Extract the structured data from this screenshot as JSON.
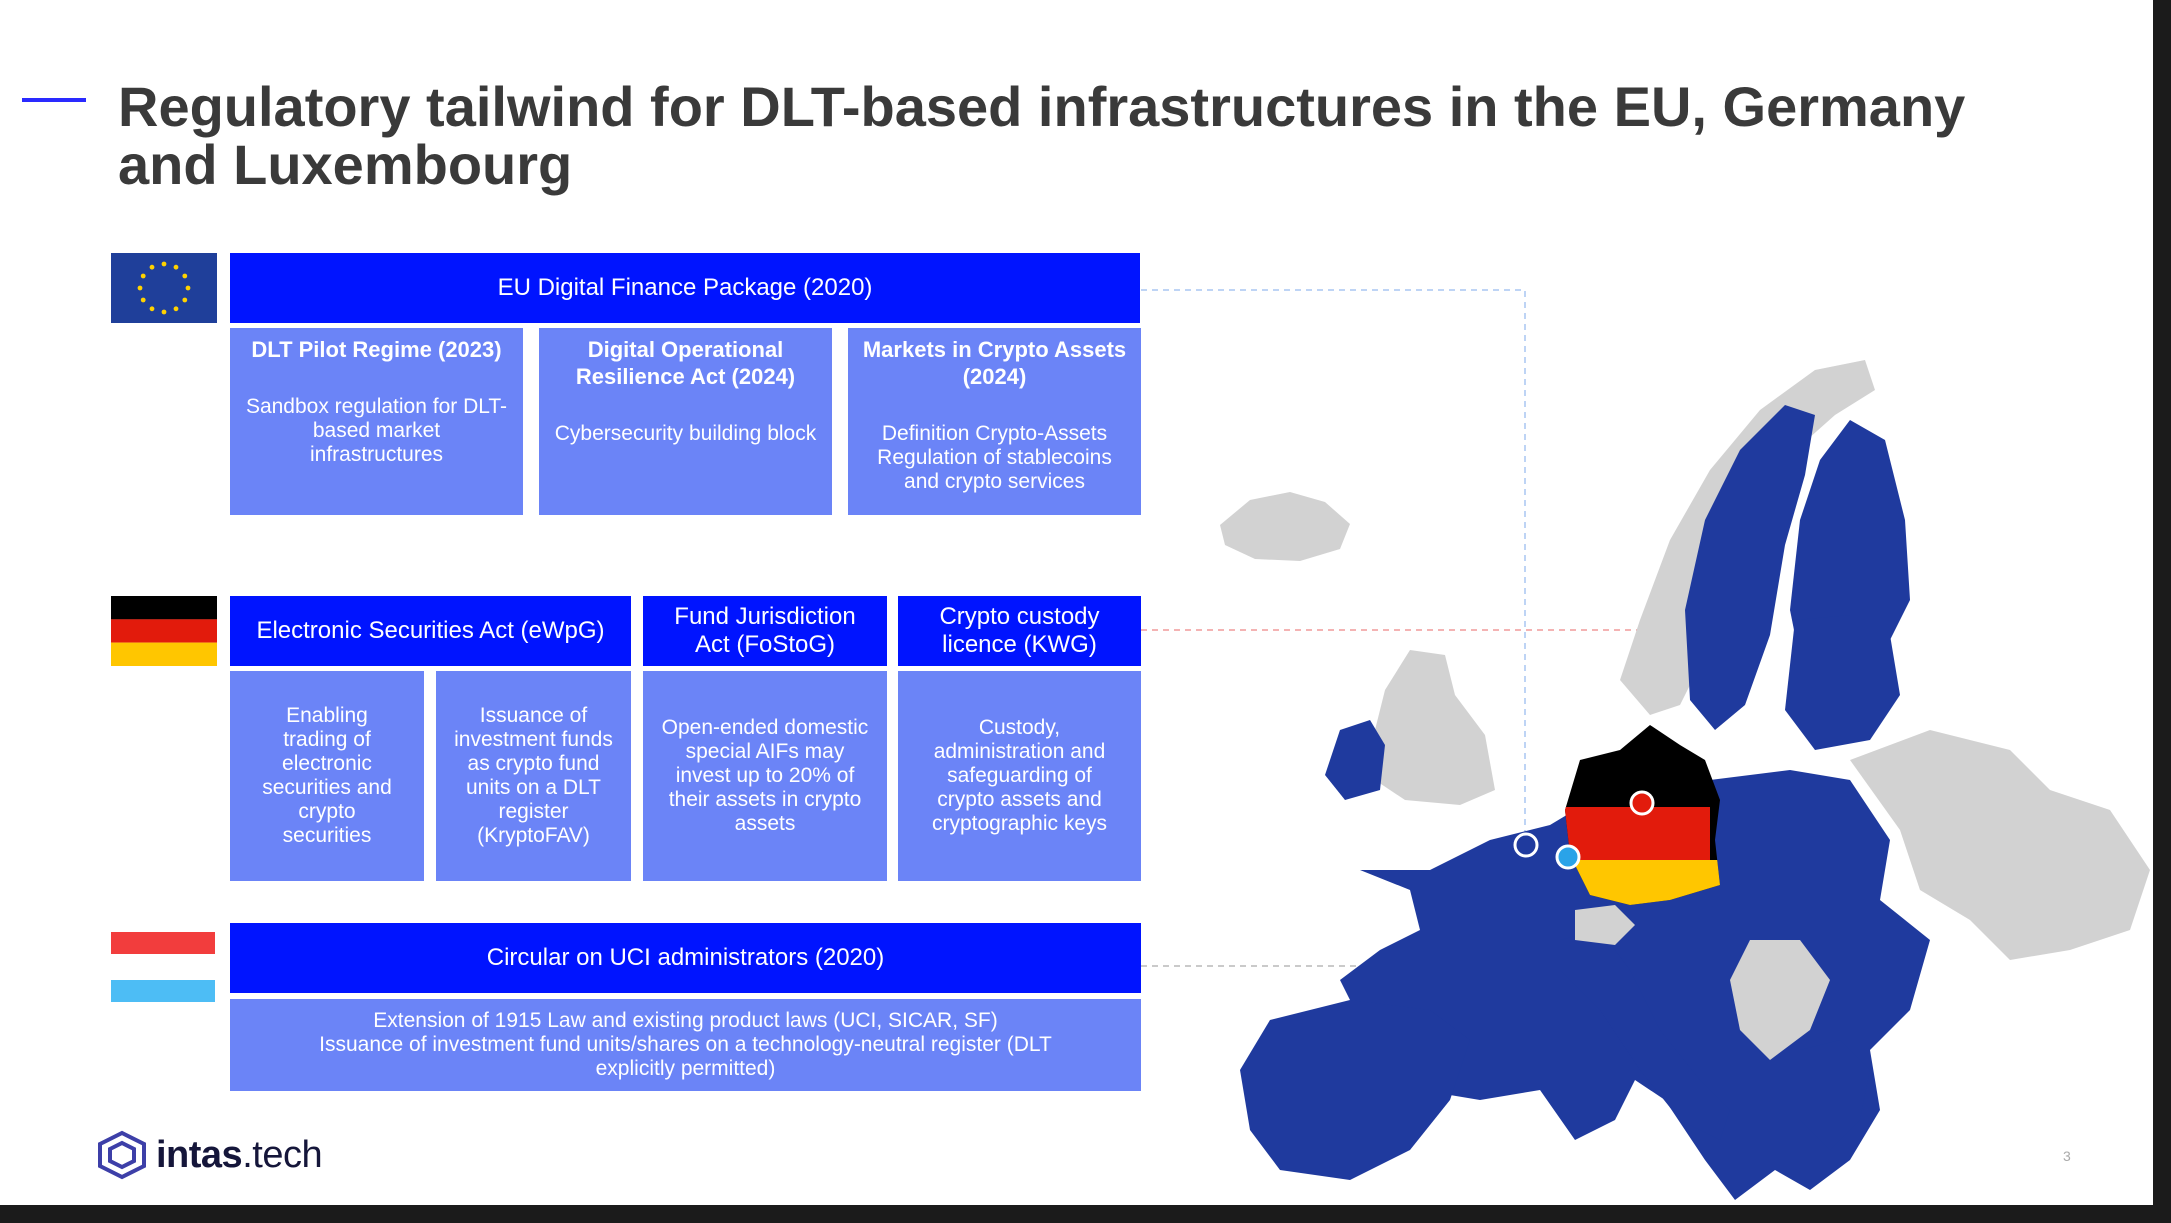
{
  "title": "Regulatory tailwind for DLT-based infrastructures in the EU, Germany and Luxembourg",
  "eu": {
    "header": "EU Digital Finance Package (2020)",
    "items": [
      {
        "title": "DLT Pilot Regime (2023)",
        "desc": "Sandbox regulation for DLT-based market infrastructures"
      },
      {
        "title": "Digital Operational Resilience Act (2024)",
        "desc": "Cybersecurity building block"
      },
      {
        "title": "Markets in Crypto Assets (2024)",
        "desc": "Definition Crypto-Assets Regulation of stablecoins and crypto services"
      }
    ]
  },
  "germany": {
    "headers": [
      "Electronic Securities Act (eWpG)",
      "Fund Jurisdiction Act (FoStoG)",
      "Crypto custody licence (KWG)"
    ],
    "items": [
      "Enabling trading of electronic securities and crypto securities",
      "Issuance of investment funds as crypto fund units on a DLT register (KryptoFAV)",
      "Open-ended domestic special AIFs may invest up to 20% of their assets in crypto assets",
      "Custody, administration and safeguarding of crypto assets and cryptographic keys"
    ]
  },
  "luxembourg": {
    "header": "Circular on UCI administrators (2020)",
    "desc_line1": "Extension of 1915 Law and existing product laws (UCI, SICAR, SF)",
    "desc_line2": "Issuance of investment fund units/shares on a technology-neutral register (DLT explicitly permitted)"
  },
  "logo": {
    "brand": "intas",
    "suffix": ".tech"
  },
  "page_number": "3",
  "colors": {
    "header_blue": "#0014ff",
    "box_blue": "#6b84f7",
    "eu_member": "#1f3a9e",
    "non_member": "#d2d2d2",
    "title_text": "#3a3a3a"
  }
}
